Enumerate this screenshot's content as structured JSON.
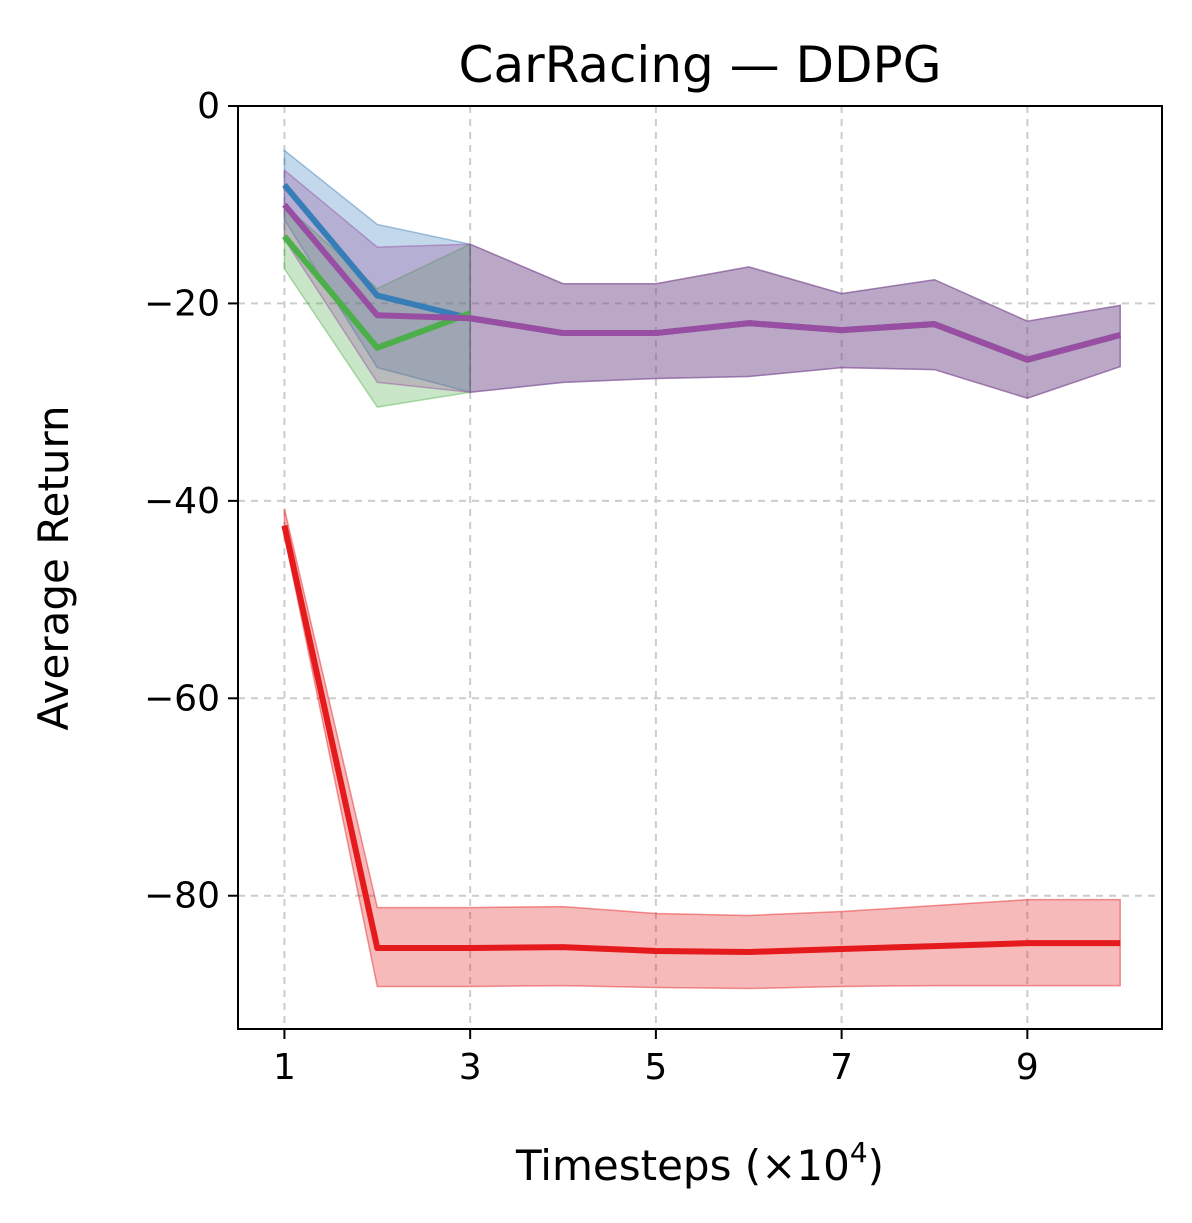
{
  "chart_data": {
    "type": "line",
    "title": "CarRacing — DDPG",
    "xlabel_main": "Timesteps (×10",
    "xlabel_exp": "4",
    "xlabel_close": ")",
    "ylabel": "Average Return",
    "xlim": [
      0.5,
      10.45
    ],
    "ylim": [
      -93.5,
      0
    ],
    "xticks": [
      1,
      3,
      5,
      7,
      9
    ],
    "xtick_labels": [
      "1",
      "3",
      "5",
      "7",
      "9"
    ],
    "yticks": [
      0,
      -20,
      -40,
      -60,
      -80
    ],
    "ytick_labels": [
      "0",
      "−20",
      "−40",
      "−60",
      "−80"
    ],
    "grid": true,
    "series": [
      {
        "name": "blue",
        "color": "#377eb8",
        "x": [
          1,
          2,
          3
        ],
        "values": [
          -8.0,
          -19.2,
          -21.5
        ],
        "upper": [
          -4.5,
          -12.0,
          -14.0
        ],
        "lower": [
          -11.5,
          -26.5,
          -29.0
        ]
      },
      {
        "name": "green",
        "color": "#4daf4a",
        "x": [
          1,
          2,
          3
        ],
        "values": [
          -13.2,
          -24.5,
          -21.0
        ],
        "upper": [
          -10.0,
          -18.5,
          -14.0
        ],
        "lower": [
          -16.5,
          -30.5,
          -29.0
        ]
      },
      {
        "name": "gray",
        "color": "#4c5c77",
        "x": [
          3,
          4,
          5,
          6,
          7,
          8,
          9,
          10
        ],
        "values": [
          -21.5,
          -23.0,
          -23.0,
          -22.0,
          -22.7,
          -22.1,
          -25.7,
          -23.2
        ],
        "upper": [
          -14.0,
          -18.0,
          -18.0,
          -16.3,
          -19.0,
          -17.6,
          -21.8,
          -20.2
        ],
        "lower": [
          -29.0,
          -28.0,
          -27.6,
          -27.4,
          -26.5,
          -26.7,
          -29.6,
          -26.4
        ]
      },
      {
        "name": "purple",
        "color": "#984ea3",
        "x": [
          1,
          2,
          3,
          4,
          5,
          6,
          7,
          8,
          9,
          10
        ],
        "values": [
          -10.0,
          -21.2,
          -21.5,
          -23.0,
          -23.0,
          -22.0,
          -22.7,
          -22.1,
          -25.7,
          -23.2
        ],
        "upper": [
          -6.5,
          -14.3,
          -14.0,
          -18.0,
          -18.0,
          -16.3,
          -19.0,
          -17.6,
          -21.8,
          -20.2
        ],
        "lower": [
          -13.5,
          -28.0,
          -29.0,
          -28.0,
          -27.6,
          -27.4,
          -26.5,
          -26.7,
          -29.6,
          -26.4
        ]
      },
      {
        "name": "red",
        "color": "#e41a1c",
        "x": [
          1,
          2,
          3,
          4,
          5,
          6,
          7,
          8,
          9,
          10
        ],
        "values": [
          -42.5,
          -85.3,
          -85.3,
          -85.2,
          -85.6,
          -85.7,
          -85.4,
          -85.1,
          -84.8,
          -84.8
        ],
        "upper": [
          -40.8,
          -81.2,
          -81.2,
          -81.1,
          -81.8,
          -82.0,
          -81.6,
          -81.0,
          -80.4,
          -80.4
        ],
        "lower": [
          -43.5,
          -89.2,
          -89.2,
          -89.1,
          -89.3,
          -89.4,
          -89.2,
          -89.1,
          -89.1,
          -89.1
        ]
      }
    ]
  }
}
